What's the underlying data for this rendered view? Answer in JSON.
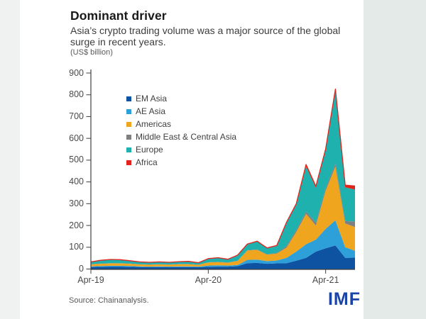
{
  "page": {
    "title": "Dominant driver",
    "subtitle_lines": [
      "Asia’s crypto trading volume was a major source of the global",
      "surge in recent years."
    ],
    "unit_label": "(US$ billion)",
    "source": "Source: Chainanalysis.",
    "logo": "IMF"
  },
  "colors": {
    "axis": "#3f3f3f",
    "logo_blue": "#1b44a8",
    "band_left": "#f0f1f1",
    "band_right": "#e4eae7"
  },
  "chart_data": {
    "type": "area",
    "stacked": true,
    "title": "Dominant driver",
    "subtitle": "Asia’s crypto trading volume was a major source of the global surge in recent years.",
    "ylabel": "(US$ billion)",
    "grid": false,
    "legend_position": "upper-left-inside",
    "ylim": [
      0,
      900
    ],
    "yticks": [
      0,
      100,
      200,
      300,
      400,
      500,
      600,
      700,
      800,
      900
    ],
    "x": [
      "Apr-19",
      "May-19",
      "Jun-19",
      "Jul-19",
      "Aug-19",
      "Sep-19",
      "Oct-19",
      "Nov-19",
      "Dec-19",
      "Jan-20",
      "Feb-20",
      "Mar-20",
      "Apr-20",
      "May-20",
      "Jun-20",
      "Jul-20",
      "Aug-20",
      "Sep-20",
      "Oct-20",
      "Nov-20",
      "Dec-20",
      "Jan-21",
      "Feb-21",
      "Mar-21",
      "Apr-21",
      "May-21",
      "Jun-21",
      "Jul-21"
    ],
    "xticks": [
      {
        "label": "Apr-19",
        "index": 0
      },
      {
        "label": "Apr-20",
        "index": 12
      },
      {
        "label": "Apr-21",
        "index": 24
      }
    ],
    "series": [
      {
        "name": "EM Asia",
        "color": "#0e52a2",
        "values": [
          9,
          10,
          11,
          11,
          10,
          9,
          8,
          9,
          8,
          9,
          9,
          8,
          10,
          11,
          11,
          13,
          27,
          28,
          24,
          26,
          27,
          38,
          51,
          80,
          95,
          108,
          51,
          52
        ]
      },
      {
        "name": "AE Asia",
        "color": "#2d9fd9",
        "values": [
          3,
          4,
          4,
          4,
          4,
          3,
          3,
          3,
          3,
          3,
          3,
          3,
          6,
          6,
          5,
          6,
          15,
          15,
          12,
          13,
          24,
          42,
          63,
          55,
          90,
          116,
          49,
          32
        ]
      },
      {
        "name": "Americas",
        "color": "#f0a51e",
        "values": [
          9,
          10,
          11,
          11,
          10,
          9,
          9,
          9,
          9,
          10,
          10,
          8,
          14,
          15,
          13,
          18,
          43,
          45,
          30,
          32,
          47,
          90,
          139,
          65,
          175,
          246,
          109,
          109
        ]
      },
      {
        "name": "Middle East & Central Asia",
        "color": "#7f7f82",
        "values": [
          1,
          1,
          1,
          1,
          1,
          1,
          1,
          1,
          1,
          1,
          1,
          1,
          1,
          1,
          1,
          1,
          2,
          2,
          2,
          3,
          8,
          10,
          11,
          13,
          12,
          14,
          11,
          25
        ]
      },
      {
        "name": "Europe",
        "color": "#1fb1ad",
        "values": [
          10,
          14,
          16,
          15,
          12,
          10,
          9,
          10,
          9,
          10,
          11,
          8,
          16,
          18,
          14,
          24,
          26,
          36,
          27,
          32,
          106,
          115,
          207,
          160,
          175,
          337,
          155,
          147
        ]
      },
      {
        "name": "Africa",
        "color": "#e0241c",
        "values": [
          1,
          1,
          1,
          1,
          1,
          1,
          1,
          1,
          1,
          1,
          1,
          1,
          1,
          1,
          1,
          2,
          2,
          2,
          2,
          2,
          3,
          5,
          9,
          7,
          5,
          5,
          10,
          16
        ]
      }
    ]
  }
}
